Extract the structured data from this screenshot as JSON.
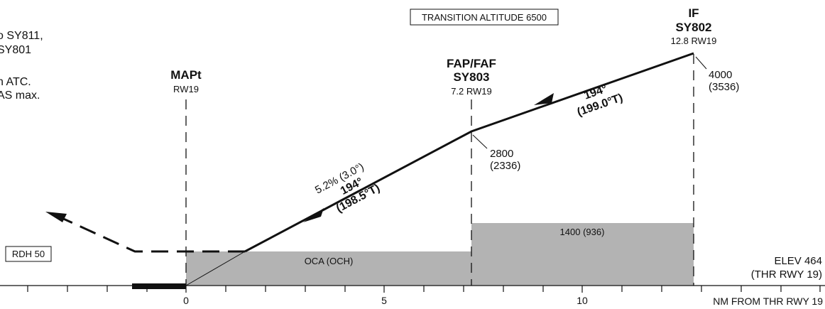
{
  "notes": {
    "line1": "o SY811,",
    "line2": "SY801",
    "line3": ".",
    "line4": "n ATC.",
    "line5": "AS max."
  },
  "transition_altitude": "TRANSITION ALTITUDE 6500",
  "fixes": {
    "mapt": {
      "name": "MAPt",
      "dist": "RW19"
    },
    "faf": {
      "name1": "FAP/FAF",
      "name2": "SY803",
      "dist": "7.2 RW19",
      "alt": "2800",
      "height": "(2336)"
    },
    "if": {
      "name1": "IF",
      "name2": "SY802",
      "dist": "12.8 RW19",
      "alt": "4000",
      "height": "(3536)"
    }
  },
  "segments": {
    "upper": {
      "track": "194°",
      "true_track": "(199.0°T)"
    },
    "final": {
      "gradient": "5.2% (3.0°)",
      "track": "194°",
      "true_track": "(198.5°T)"
    }
  },
  "boxes": {
    "oca": "OCA (OCH)",
    "upper_msa": "1400 (936)",
    "rdh": "RDH 50"
  },
  "elevation": {
    "line1": "ELEV 464",
    "line2": "(THR RWY 19)"
  },
  "axis": {
    "label": "NM FROM THR RWY 19",
    "ticks": [
      "0",
      "5",
      "10"
    ]
  }
}
